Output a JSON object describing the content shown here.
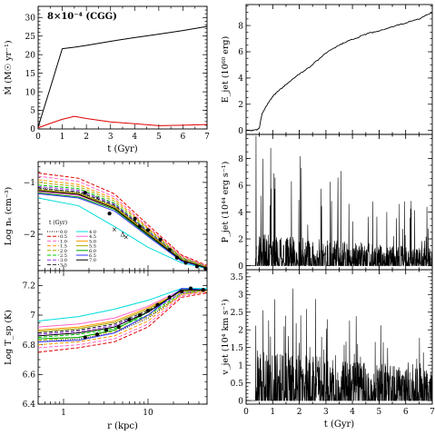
{
  "chart_data": [
    {
      "id": "mdot",
      "type": "line",
      "annotation": "8×10⁻⁴ (CGG)",
      "xlabel": "t (Gyr)",
      "ylabel": "Ṁ (M☉ yr⁻¹)",
      "xlim": [
        0,
        7
      ],
      "ylim": [
        0,
        33
      ],
      "xticks": [
        "0",
        "1",
        "2",
        "3",
        "4",
        "5",
        "6",
        "7"
      ],
      "yticks": [
        "0",
        "5",
        "10",
        "15",
        "20",
        "25",
        "30"
      ],
      "series": [
        {
          "color": "#000000",
          "x": [
            0,
            0.5,
            1,
            1.5,
            2,
            3,
            4,
            5,
            6,
            7
          ],
          "y": [
            0.5,
            11,
            21.6,
            22,
            22.5,
            23.6,
            24.6,
            25.5,
            26.5,
            27.6
          ]
        },
        {
          "color": "#e00000",
          "x": [
            0,
            0.5,
            1,
            1.5,
            2,
            3,
            4,
            5,
            6,
            7
          ],
          "y": [
            0.3,
            1.5,
            2.6,
            3.4,
            2.8,
            1.9,
            1.4,
            0.9,
            1.0,
            1.2
          ]
        }
      ]
    },
    {
      "id": "ejet",
      "type": "line",
      "xlabel": "",
      "ylabel": "E_jet (10⁶⁰ erg)",
      "xlim": [
        0,
        7
      ],
      "ylim": [
        -0.3,
        9.6
      ],
      "xticks": [],
      "yticks": [
        "0",
        "2",
        "4",
        "6",
        "8"
      ],
      "series": [
        {
          "color": "#000000",
          "x": [
            0,
            0.2,
            0.4,
            0.5,
            0.6,
            0.8,
            1,
            1.2,
            1.5,
            1.8,
            2,
            2.3,
            2.6,
            3,
            3.4,
            3.8,
            4.2,
            4.6,
            5,
            5.5,
            6,
            6.5,
            7
          ],
          "y": [
            0,
            0,
            0.05,
            0.2,
            1.3,
            2.0,
            2.6,
            3.0,
            3.5,
            4.0,
            4.3,
            4.7,
            5.2,
            5.9,
            6.4,
            6.8,
            7.1,
            7.4,
            7.6,
            7.9,
            8.2,
            8.5,
            9.0
          ]
        }
      ]
    },
    {
      "id": "ne",
      "type": "line",
      "xlabel": "",
      "ylabel": "Log nₑ (cm⁻³)",
      "xscale": "log",
      "xlim": [
        0.5,
        50
      ],
      "ylim": [
        -2.7,
        -0.6
      ],
      "yticks": [
        "−1",
        "−2"
      ],
      "legend": {
        "title": "t (Gyr)",
        "placement": "lower-left",
        "entries": [
          {
            "label": "0.0",
            "color": "#000000",
            "dash": "1,1.5"
          },
          {
            "label": "0.5",
            "color": "#e00000",
            "dash": "4,2"
          },
          {
            "label": "1.0",
            "color": "#ff66cc",
            "dash": "4,2"
          },
          {
            "label": "1.5",
            "color": "#ff9900",
            "dash": "4,2"
          },
          {
            "label": "2.0",
            "color": "#aaaa00",
            "dash": "4,2"
          },
          {
            "label": "2.5",
            "color": "#00cc00",
            "dash": "4,2"
          },
          {
            "label": "3.0",
            "color": "#9933ff",
            "dash": "4,2"
          },
          {
            "label": "3.5",
            "color": "#222222",
            "dash": "4,2"
          },
          {
            "label": "4.0",
            "color": "#00dddd",
            "dash": ""
          },
          {
            "label": "4.5",
            "color": "#ff66cc",
            "dash": ""
          },
          {
            "label": "5.0",
            "color": "#ff9900",
            "dash": ""
          },
          {
            "label": "5.5",
            "color": "#aaaa00",
            "dash": ""
          },
          {
            "label": "6.0",
            "color": "#00aa00",
            "dash": ""
          },
          {
            "label": "6.5",
            "color": "#3333ff",
            "dash": ""
          },
          {
            "label": "7.0",
            "color": "#000000",
            "dash": ""
          }
        ]
      },
      "profiles": [
        {
          "color": "#000000",
          "dash": "1,1.5",
          "y": [
            -1.1,
            -1.2,
            -1.46,
            -1.95,
            -2.48,
            -2.64
          ]
        },
        {
          "color": "#e00000",
          "dash": "4,2",
          "y": [
            -0.82,
            -0.92,
            -1.22,
            -1.82,
            -2.4,
            -2.6
          ]
        },
        {
          "color": "#ff66cc",
          "dash": "4,2",
          "y": [
            -0.88,
            -0.98,
            -1.28,
            -1.86,
            -2.42,
            -2.61
          ]
        },
        {
          "color": "#ff9900",
          "dash": "4,2",
          "y": [
            -0.95,
            -1.04,
            -1.32,
            -1.88,
            -2.44,
            -2.62
          ]
        },
        {
          "color": "#aaaa00",
          "dash": "4,2",
          "y": [
            -1.0,
            -1.08,
            -1.36,
            -1.9,
            -2.45,
            -2.62
          ]
        },
        {
          "color": "#00cc00",
          "dash": "4,2",
          "y": [
            -1.05,
            -1.12,
            -1.4,
            -1.93,
            -2.46,
            -2.63
          ]
        },
        {
          "color": "#9933ff",
          "dash": "4,2",
          "y": [
            -1.08,
            -1.15,
            -1.42,
            -1.94,
            -2.47,
            -2.63
          ]
        },
        {
          "color": "#222222",
          "dash": "4,2",
          "y": [
            -1.12,
            -1.18,
            -1.44,
            -1.96,
            -2.48,
            -2.64
          ]
        },
        {
          "color": "#00dddd",
          "dash": "",
          "y": [
            -1.3,
            -1.45,
            -1.85,
            -2.25,
            -2.55,
            -2.66
          ]
        },
        {
          "color": "#ff66cc",
          "dash": "",
          "y": [
            -1.18,
            -1.25,
            -1.5,
            -2.0,
            -2.5,
            -2.64
          ]
        },
        {
          "color": "#ff9900",
          "dash": "",
          "y": [
            -1.15,
            -1.22,
            -1.48,
            -1.98,
            -2.49,
            -2.64
          ]
        },
        {
          "color": "#aaaa00",
          "dash": "",
          "y": [
            -1.14,
            -1.21,
            -1.47,
            -1.97,
            -2.48,
            -2.64
          ]
        },
        {
          "color": "#00aa00",
          "dash": "",
          "y": [
            -1.2,
            -1.28,
            -1.52,
            -2.02,
            -2.51,
            -2.65
          ]
        },
        {
          "color": "#3333ff",
          "dash": "",
          "y": [
            -1.22,
            -1.3,
            -1.55,
            -2.04,
            -2.52,
            -2.65
          ]
        },
        {
          "color": "#000000",
          "dash": "",
          "y": [
            -1.16,
            -1.23,
            -1.5,
            -2.0,
            -2.5,
            -2.65
          ]
        }
      ],
      "profile_r": [
        0.5,
        1.5,
        4,
        10,
        25,
        50
      ],
      "observed_dots": [
        [
          1.8,
          -1.2
        ],
        [
          3.5,
          -1.6
        ],
        [
          7,
          -1.7
        ],
        [
          8,
          -1.85
        ],
        [
          10,
          -1.92
        ],
        [
          14,
          -2.1
        ],
        [
          18,
          -2.3
        ],
        [
          22,
          -2.45
        ],
        [
          28,
          -2.55
        ],
        [
          38,
          -2.62
        ],
        [
          48,
          -2.66
        ]
      ],
      "observed_crosses": [
        [
          2.5,
          -1.3
        ],
        [
          4,
          -1.9
        ],
        [
          5.5,
          -2.05
        ]
      ],
      "observed_triangles": [
        [
          5,
          -2.0
        ]
      ]
    },
    {
      "id": "tsp",
      "type": "line",
      "xlabel": "r (kpc)",
      "ylabel": "Log T_sp (K)",
      "xscale": "log",
      "xlim": [
        0.5,
        50
      ],
      "ylim": [
        6.4,
        7.3
      ],
      "xticks": [
        "1",
        "10"
      ],
      "yticks": [
        "6.4",
        "6.6",
        "6.8",
        "7",
        "7.2"
      ],
      "profile_r": [
        0.5,
        1.5,
        4,
        10,
        25,
        50
      ],
      "profiles": [
        {
          "color": "#000000",
          "dash": "1,1.5",
          "y": [
            6.82,
            6.84,
            6.88,
            6.98,
            7.14,
            7.17
          ]
        },
        {
          "color": "#e00000",
          "dash": "4,2",
          "y": [
            6.75,
            6.78,
            6.82,
            6.92,
            7.12,
            7.15
          ]
        },
        {
          "color": "#ff66cc",
          "dash": "4,2",
          "y": [
            6.78,
            6.8,
            6.84,
            6.94,
            7.13,
            7.16
          ]
        },
        {
          "color": "#ff9900",
          "dash": "4,2",
          "y": [
            6.8,
            6.82,
            6.86,
            6.96,
            7.14,
            7.16
          ]
        },
        {
          "color": "#aaaa00",
          "dash": "4,2",
          "y": [
            6.83,
            6.85,
            6.89,
            6.99,
            7.14,
            7.17
          ]
        },
        {
          "color": "#00cc00",
          "dash": "4,2",
          "y": [
            6.85,
            6.87,
            6.91,
            7.0,
            7.15,
            7.17
          ]
        },
        {
          "color": "#9933ff",
          "dash": "4,2",
          "y": [
            6.87,
            6.89,
            6.93,
            7.02,
            7.15,
            7.17
          ]
        },
        {
          "color": "#222222",
          "dash": "4,2",
          "y": [
            6.88,
            6.9,
            6.94,
            7.03,
            7.16,
            7.17
          ]
        },
        {
          "color": "#00dddd",
          "dash": "",
          "y": [
            6.96,
            6.99,
            7.04,
            7.1,
            7.18,
            7.18
          ]
        },
        {
          "color": "#ff66cc",
          "dash": "",
          "y": [
            6.92,
            6.94,
            6.98,
            7.06,
            7.17,
            7.17
          ]
        },
        {
          "color": "#ff9900",
          "dash": "",
          "y": [
            6.9,
            6.92,
            6.96,
            7.05,
            7.16,
            7.17
          ]
        },
        {
          "color": "#aaaa00",
          "dash": "",
          "y": [
            6.89,
            6.91,
            6.95,
            7.04,
            7.16,
            7.17
          ]
        },
        {
          "color": "#00aa00",
          "dash": "",
          "y": [
            6.84,
            6.85,
            6.9,
            7.02,
            7.17,
            7.17
          ]
        },
        {
          "color": "#3333ff",
          "dash": "",
          "y": [
            6.82,
            6.83,
            6.88,
            7.0,
            7.18,
            7.17
          ]
        },
        {
          "color": "#000000",
          "dash": "",
          "y": [
            6.86,
            6.88,
            6.92,
            7.02,
            7.17,
            7.17
          ]
        }
      ],
      "observed_dots": [
        [
          1.8,
          6.85
        ],
        [
          2.5,
          6.87
        ],
        [
          3.2,
          6.9
        ],
        [
          4.5,
          6.92
        ],
        [
          6,
          6.97
        ],
        [
          8,
          7.0
        ],
        [
          10,
          7.03
        ],
        [
          13,
          7.07
        ],
        [
          18,
          7.12
        ],
        [
          25,
          7.16
        ],
        [
          32,
          7.18
        ],
        [
          45,
          7.17
        ]
      ]
    },
    {
      "id": "pjet",
      "type": "line",
      "xlabel": "",
      "ylabel": "P_jet (10⁴⁴ erg s⁻¹)",
      "xlim": [
        0,
        7
      ],
      "ylim": [
        -0.3,
        9.8
      ],
      "xticks": [],
      "yticks": [
        "0",
        "2",
        "4",
        "6",
        "8"
      ],
      "series": [
        {
          "color": "#000000",
          "signal": "spiky",
          "t_start": 0.35,
          "base": 1.5,
          "base_tail": 0.8,
          "max": 9.8,
          "seed": 7
        }
      ]
    },
    {
      "id": "vjet",
      "type": "line",
      "xlabel": "t (Gyr)",
      "ylabel": "v_jet (10⁴ km s⁻¹)",
      "xlim": [
        0,
        7
      ],
      "ylim": [
        -0.1,
        3.7
      ],
      "xticks": [
        "0",
        "1",
        "2",
        "3",
        "4",
        "5",
        "6",
        "7"
      ],
      "yticks": [
        "0",
        "0.5",
        "1",
        "1.5",
        "2",
        "2.5",
        "3",
        "3.5"
      ],
      "series": [
        {
          "color": "#000000",
          "signal": "spiky",
          "t_start": 0.35,
          "base": 0.9,
          "base_tail": 0.55,
          "max": 3.7,
          "seed": 13
        }
      ]
    }
  ]
}
